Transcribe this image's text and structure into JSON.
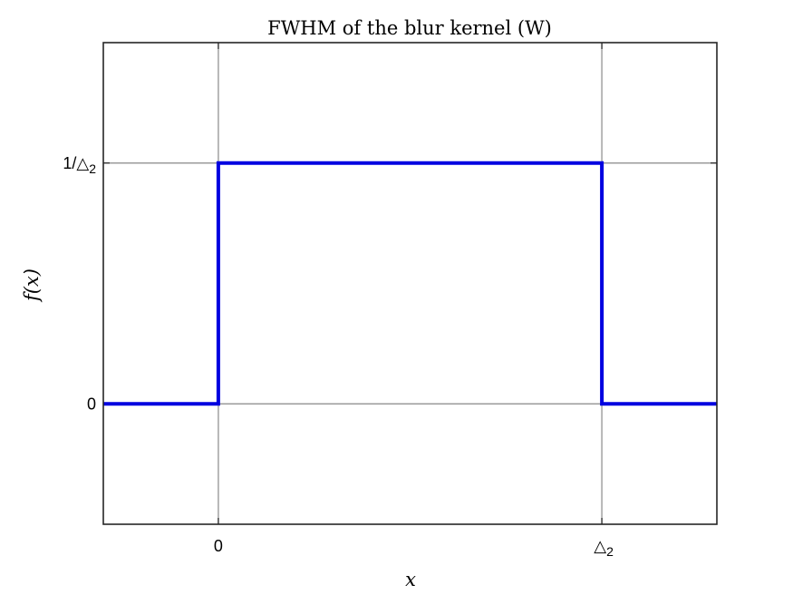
{
  "chart_data": {
    "type": "line",
    "title": "FWHM of the blur kernel (W)",
    "xlabel": "x",
    "ylabel": "f(x)",
    "xlim": [
      -0.3,
      1.3
    ],
    "ylim": [
      -0.5,
      1.5
    ],
    "grid": true,
    "series": [
      {
        "color": "#0000e0",
        "x": [
          -0.3,
          0,
          0,
          1,
          1,
          1.3
        ],
        "y": [
          0,
          0,
          1,
          1,
          0,
          0
        ]
      }
    ],
    "xticks": [
      {
        "value": 0,
        "text": "0",
        "sub": ""
      },
      {
        "value": 1,
        "text": "△",
        "sub": "2"
      }
    ],
    "yticks": [
      {
        "value": 0,
        "text": "0",
        "sub": ""
      },
      {
        "value": 1,
        "text": "1/△",
        "sub": "2"
      }
    ],
    "colors": {
      "axes": "#262626",
      "grid": "#9b9b9b",
      "line": "#0000e0"
    }
  }
}
